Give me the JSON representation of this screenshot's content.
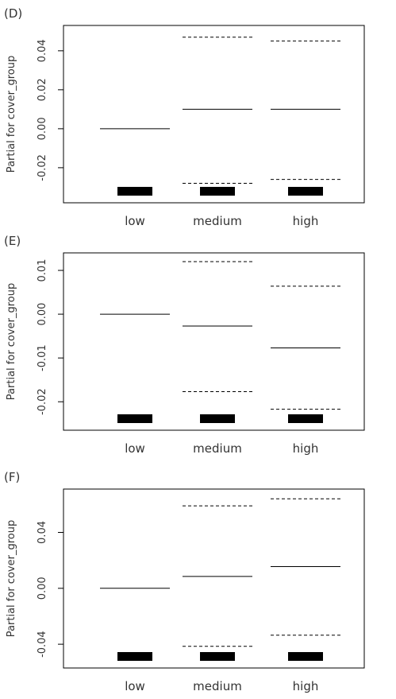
{
  "chart_data": [
    {
      "panel_label": "(D)",
      "type": "termplot",
      "ylabel": "Partial for cover_group",
      "categories": [
        "low",
        "medium",
        "high"
      ],
      "ylim": [
        -0.038,
        0.053
      ],
      "yticks": [
        -0.02,
        0.0,
        0.02,
        0.04
      ],
      "ytick_labels": [
        "-0.02",
        "0.00",
        "0.02",
        "0.04"
      ],
      "series": [
        {
          "role": "fit",
          "style": "solid",
          "values": [
            0.0,
            0.01,
            0.01
          ]
        },
        {
          "role": "upper",
          "style": "dashed",
          "values": [
            null,
            0.047,
            0.045
          ]
        },
        {
          "role": "lower",
          "style": "dashed",
          "values": [
            null,
            -0.028,
            -0.026
          ]
        }
      ],
      "rug": "bottom"
    },
    {
      "panel_label": "(E)",
      "type": "termplot",
      "ylabel": "Partial for cover_group",
      "categories": [
        "low",
        "medium",
        "high"
      ],
      "ylim": [
        -0.0265,
        0.014
      ],
      "yticks": [
        -0.02,
        -0.01,
        0.0,
        0.01
      ],
      "ytick_labels": [
        "-0.02",
        "-0.01",
        "0.00",
        "0.01"
      ],
      "series": [
        {
          "role": "fit",
          "style": "solid",
          "values": [
            0.0,
            -0.0027,
            -0.0077
          ]
        },
        {
          "role": "upper",
          "style": "dashed",
          "values": [
            null,
            0.012,
            0.0064
          ]
        },
        {
          "role": "lower",
          "style": "dashed",
          "values": [
            null,
            -0.0177,
            -0.0217
          ]
        }
      ],
      "rug": "bottom"
    },
    {
      "panel_label": "(F)",
      "type": "termplot",
      "ylabel": "Partial for cover_group",
      "categories": [
        "low",
        "medium",
        "high"
      ],
      "ylim": [
        -0.057,
        0.071
      ],
      "yticks": [
        -0.04,
        0.0,
        0.04
      ],
      "ytick_labels": [
        "-0.04",
        "0.00",
        "0.04"
      ],
      "series": [
        {
          "role": "fit",
          "style": "solid",
          "values": [
            0.0,
            0.0085,
            0.0155
          ]
        },
        {
          "role": "upper",
          "style": "dashed",
          "values": [
            null,
            0.059,
            0.064
          ]
        },
        {
          "role": "lower",
          "style": "dashed",
          "values": [
            null,
            -0.0415,
            -0.0335
          ]
        }
      ],
      "rug": "bottom"
    }
  ]
}
